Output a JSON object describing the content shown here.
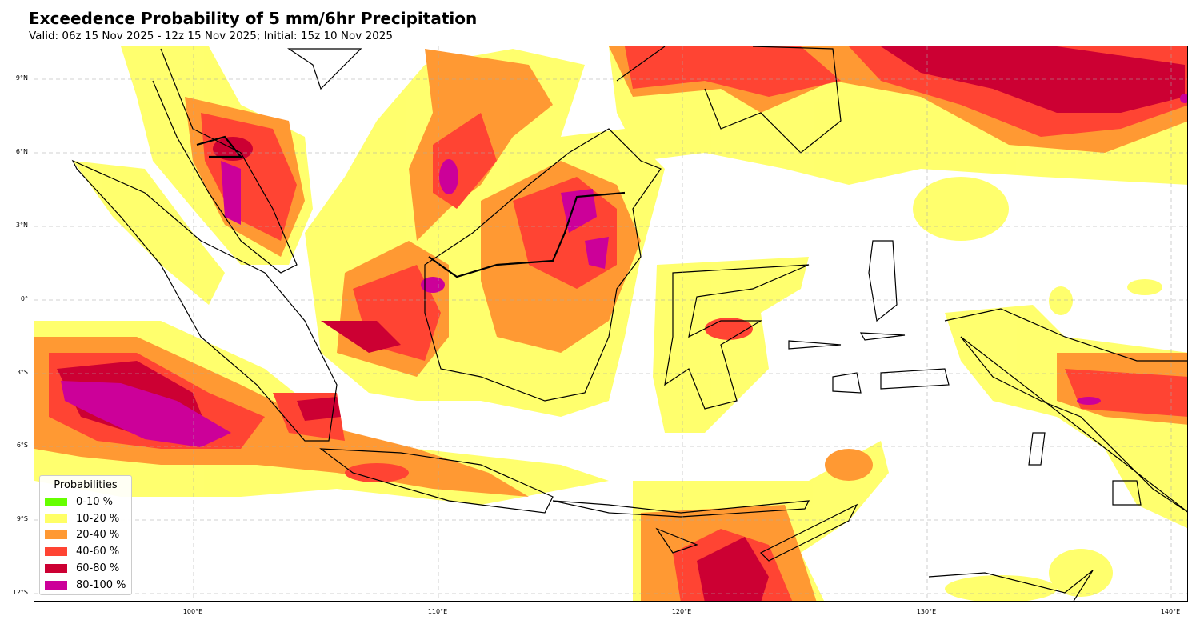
{
  "title": "Exceedence Probability of 5 mm/6hr Precipitation",
  "subtitle": "Valid: 06z 15 Nov 2025 - 12z 15 Nov 2025; Initial: 15z 10 Nov 2025",
  "axes": {
    "lat_ticks": [
      "9°N",
      "6°N",
      "3°N",
      "0°",
      "3°S",
      "6°S",
      "9°S",
      "12°S"
    ],
    "lon_ticks": [
      "100°E",
      "110°E",
      "120°E",
      "130°E",
      "140°E"
    ]
  },
  "legend": {
    "title": "Probabilities",
    "items": [
      {
        "label": "0-10 %",
        "color": "#66ff00"
      },
      {
        "label": "10-20 %",
        "color": "#ffff66"
      },
      {
        "label": "20-40 %",
        "color": "#ff9933"
      },
      {
        "label": "40-60 %",
        "color": "#ff4433"
      },
      {
        "label": "60-80 %",
        "color": "#cc0033"
      },
      {
        "label": "80-100 %",
        "color": "#cc0099"
      }
    ]
  }
}
